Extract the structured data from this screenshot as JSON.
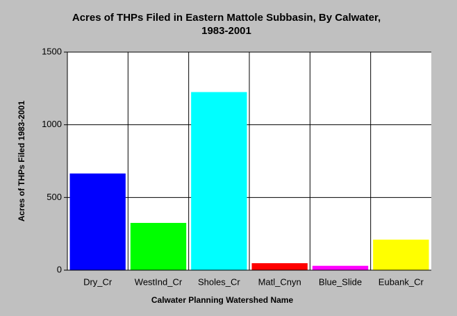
{
  "chart_data": {
    "type": "bar",
    "title": [
      "Acres of THPs Filed in Eastern Mattole Subbasin, By Calwater,",
      "1983-2001"
    ],
    "x_label": "Calwater Planning Watershed Name",
    "y_label": "Acres of THPs Filed 1983-2001",
    "categories": [
      "Dry_Cr",
      "WestInd_Cr",
      "Sholes_Cr",
      "Matl_Cnyn",
      "Blue_Slide",
      "Eubank_Cr"
    ],
    "values": [
      665,
      325,
      1225,
      48,
      30,
      210
    ],
    "colors": [
      "#0000ff",
      "#00ff00",
      "#00ffff",
      "#ff0000",
      "#ff00ff",
      "#ffff00"
    ],
    "ylim": [
      0,
      1500
    ],
    "yticks": [
      0,
      500,
      1000,
      1500
    ],
    "grid": true
  }
}
